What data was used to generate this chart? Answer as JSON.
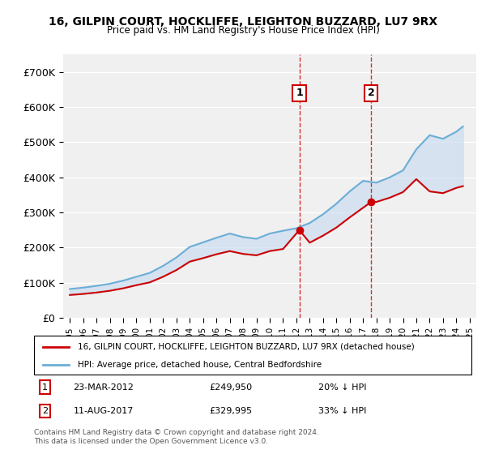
{
  "title": "16, GILPIN COURT, HOCKLIFFE, LEIGHTON BUZZARD, LU7 9RX",
  "subtitle": "Price paid vs. HM Land Registry's House Price Index (HPI)",
  "hpi_label": "HPI: Average price, detached house, Central Bedfordshire",
  "property_label": "16, GILPIN COURT, HOCKLIFFE, LEIGHTON BUZZARD, LU7 9RX (detached house)",
  "footer": "Contains HM Land Registry data © Crown copyright and database right 2024.\nThis data is licensed under the Open Government Licence v3.0.",
  "transaction1_date": "23-MAR-2012",
  "transaction1_price": "£249,950",
  "transaction1_hpi": "20% ↓ HPI",
  "transaction2_date": "11-AUG-2017",
  "transaction2_price": "£329,995",
  "transaction2_hpi": "33% ↓ HPI",
  "hpi_color": "#6baed6",
  "property_color": "#cc0000",
  "vline_color": "#cc0000",
  "background_color": "#ffffff",
  "plot_bg_color": "#f0f0f0",
  "ylim": [
    0,
    750000
  ],
  "yticks": [
    0,
    100000,
    200000,
    300000,
    400000,
    500000,
    600000,
    700000
  ],
  "transaction1_x": 2012.22,
  "transaction2_x": 2017.61,
  "hpi_years": [
    1995,
    1996,
    1997,
    1998,
    1999,
    2000,
    2001,
    2002,
    2003,
    2004,
    2005,
    2006,
    2007,
    2008,
    2009,
    2010,
    2011,
    2012,
    2013,
    2014,
    2015,
    2016,
    2017,
    2018,
    2019,
    2020,
    2021,
    2022,
    2023,
    2024,
    2024.5
  ],
  "hpi_values": [
    82000,
    86000,
    91000,
    97000,
    106000,
    117000,
    128000,
    148000,
    172000,
    202000,
    215000,
    228000,
    240000,
    230000,
    225000,
    240000,
    248000,
    255000,
    270000,
    295000,
    325000,
    360000,
    390000,
    385000,
    400000,
    420000,
    480000,
    520000,
    510000,
    530000,
    545000
  ],
  "property_years": [
    1995,
    1996,
    1997,
    1998,
    1999,
    2000,
    2001,
    2002,
    2003,
    2004,
    2005,
    2006,
    2007,
    2008,
    2009,
    2010,
    2011,
    2012.22,
    2013,
    2014,
    2015,
    2016,
    2017.61,
    2018,
    2019,
    2020,
    2021,
    2022,
    2023,
    2024,
    2024.5
  ],
  "property_values": [
    65000,
    68000,
    72000,
    77000,
    84000,
    93000,
    101000,
    117000,
    136000,
    160000,
    170000,
    181000,
    190000,
    182000,
    178000,
    190000,
    196000,
    249950,
    214000,
    234000,
    257000,
    286000,
    329995,
    329995,
    342000,
    358000,
    395000,
    360000,
    355000,
    370000,
    375000
  ]
}
